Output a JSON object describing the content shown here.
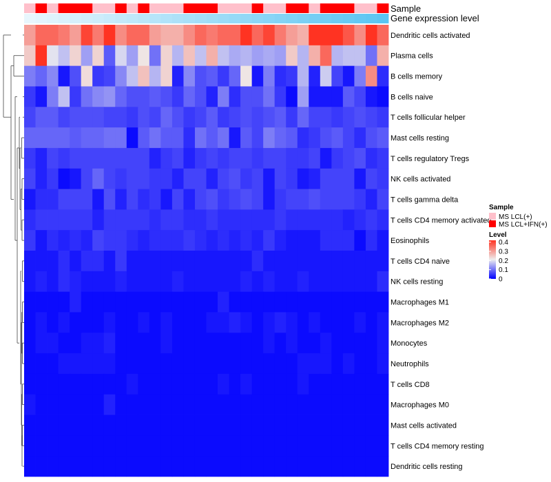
{
  "chart_data": {
    "type": "heatmap",
    "annotation_labels": [
      "Sample",
      "Gene expression level"
    ],
    "rows": [
      "Dendritic cells activated",
      "Plasma cells",
      "B cells memory",
      "B cells naive",
      "T cells follicular helper",
      "Mast cells resting",
      "T cells regulatory  Tregs",
      "NK cells activated",
      "T cells gamma delta",
      "T cells CD4 memory activated",
      "Eosinophils",
      "T cells CD4 naive",
      "NK cells resting",
      "Macrophages M1",
      "Macrophages M2",
      "Monocytes",
      "Neutrophils",
      "T cells CD8",
      "Macrophages M0",
      "Mast cells activated",
      "T cells CD4 memory resting",
      "Dendritic cells resting"
    ],
    "sample_groups": [
      "MS LCL(+)",
      "MS LCL+IFN(+)",
      "MS LCL(+)",
      "MS LCL+IFN(+)",
      "MS LCL+IFN(+)",
      "MS LCL+IFN(+)",
      "MS LCL(+)",
      "MS LCL(+)",
      "MS LCL+IFN(+)",
      "MS LCL(+)",
      "MS LCL+IFN(+)",
      "MS LCL(+)",
      "MS LCL(+)",
      "MS LCL(+)",
      "MS LCL+IFN(+)",
      "MS LCL+IFN(+)",
      "MS LCL+IFN(+)",
      "MS LCL(+)",
      "MS LCL(+)",
      "MS LCL(+)",
      "MS LCL+IFN(+)",
      "MS LCL(+)",
      "MS LCL(+)",
      "MS LCL+IFN(+)",
      "MS LCL+IFN(+)",
      "MS LCL(+)",
      "MS LCL+IFN(+)",
      "MS LCL+IFN(+)",
      "MS LCL+IFN(+)",
      "MS LCL(+)",
      "MS LCL(+)",
      "MS LCL+IFN(+)"
    ],
    "expression_range": [
      0,
      1
    ],
    "values": [
      [
        0.3,
        0.36,
        0.36,
        0.34,
        0.3,
        0.4,
        0.34,
        0.42,
        0.32,
        0.36,
        0.36,
        0.3,
        0.28,
        0.28,
        0.32,
        0.36,
        0.34,
        0.36,
        0.36,
        0.42,
        0.36,
        0.4,
        0.34,
        0.3,
        0.28,
        0.42,
        0.42,
        0.42,
        0.38,
        0.32,
        0.42,
        0.36
      ],
      [
        0.25,
        0.42,
        0.2,
        0.17,
        0.24,
        0.14,
        0.24,
        0.08,
        0.19,
        0.14,
        0.22,
        0.1,
        0.24,
        0.16,
        0.26,
        0.17,
        0.28,
        0.17,
        0.15,
        0.16,
        0.14,
        0.15,
        0.14,
        0.25,
        0.16,
        0.28,
        0.36,
        0.16,
        0.17,
        0.17,
        0.1,
        0.28
      ],
      [
        0.11,
        0.09,
        0.12,
        0.02,
        0.07,
        0.23,
        0.05,
        0.06,
        0.12,
        0.17,
        0.26,
        0.16,
        0.24,
        0.03,
        0.12,
        0.07,
        0.08,
        0.05,
        0.09,
        0.22,
        0.02,
        0.11,
        0.04,
        0.05,
        0.16,
        0.03,
        0.18,
        0.06,
        0.02,
        0.11,
        0.32,
        0.04
      ],
      [
        0.05,
        0.02,
        0.11,
        0.17,
        0.05,
        0.1,
        0.12,
        0.13,
        0.09,
        0.07,
        0.07,
        0.08,
        0.07,
        0.05,
        0.09,
        0.07,
        0.03,
        0.11,
        0.04,
        0.07,
        0.07,
        0.1,
        0.05,
        0.01,
        0.14,
        0.02,
        0.02,
        0.02,
        0.08,
        0.06,
        0.02,
        0.01
      ],
      [
        0.06,
        0.08,
        0.08,
        0.06,
        0.07,
        0.07,
        0.07,
        0.06,
        0.06,
        0.05,
        0.07,
        0.06,
        0.09,
        0.07,
        0.05,
        0.06,
        0.08,
        0.05,
        0.06,
        0.07,
        0.06,
        0.07,
        0.08,
        0.05,
        0.09,
        0.06,
        0.06,
        0.05,
        0.06,
        0.07,
        0.06,
        0.05
      ],
      [
        0.09,
        0.09,
        0.09,
        0.09,
        0.08,
        0.09,
        0.09,
        0.1,
        0.1,
        0.01,
        0.08,
        0.1,
        0.08,
        0.08,
        0.04,
        0.1,
        0.08,
        0.1,
        0.02,
        0.08,
        0.06,
        0.11,
        0.09,
        0.08,
        0.04,
        0.05,
        0.07,
        0.08,
        0.06,
        0.04,
        0.07,
        0.08
      ],
      [
        0.05,
        0.03,
        0.06,
        0.05,
        0.06,
        0.06,
        0.06,
        0.06,
        0.06,
        0.06,
        0.06,
        0.03,
        0.05,
        0.06,
        0.03,
        0.05,
        0.06,
        0.05,
        0.06,
        0.06,
        0.05,
        0.06,
        0.06,
        0.05,
        0.05,
        0.06,
        0.02,
        0.05,
        0.06,
        0.07,
        0.04,
        0.05
      ],
      [
        0.06,
        0.03,
        0.05,
        0.01,
        0.02,
        0.06,
        0.09,
        0.06,
        0.05,
        0.06,
        0.06,
        0.05,
        0.05,
        0.03,
        0.06,
        0.06,
        0.03,
        0.06,
        0.07,
        0.05,
        0.06,
        0.02,
        0.06,
        0.05,
        0.02,
        0.03,
        0.06,
        0.06,
        0.06,
        0.02,
        0.06,
        0.05
      ],
      [
        0.02,
        0.04,
        0.04,
        0.06,
        0.06,
        0.06,
        0.02,
        0.07,
        0.03,
        0.06,
        0.04,
        0.05,
        0.02,
        0.06,
        0.03,
        0.06,
        0.07,
        0.05,
        0.06,
        0.07,
        0.06,
        0.02,
        0.05,
        0.06,
        0.06,
        0.07,
        0.06,
        0.06,
        0.06,
        0.05,
        0.03,
        0.06
      ],
      [
        0.04,
        0.05,
        0.05,
        0.05,
        0.05,
        0.05,
        0.03,
        0.05,
        0.05,
        0.05,
        0.05,
        0.04,
        0.05,
        0.05,
        0.04,
        0.04,
        0.05,
        0.04,
        0.04,
        0.04,
        0.04,
        0.04,
        0.05,
        0.04,
        0.04,
        0.04,
        0.04,
        0.04,
        0.03,
        0.04,
        0.05,
        0.04
      ],
      [
        0.05,
        0.02,
        0.04,
        0.03,
        0.04,
        0.03,
        0.06,
        0.05,
        0.05,
        0.04,
        0.03,
        0.04,
        0.04,
        0.04,
        0.05,
        0.04,
        0.03,
        0.04,
        0.03,
        0.04,
        0.03,
        0.05,
        0.03,
        0.02,
        0.02,
        0.02,
        0.04,
        0.04,
        0.04,
        0.01,
        0.04,
        0.02
      ],
      [
        0.02,
        0.02,
        0.02,
        0.04,
        0.02,
        0.04,
        0.04,
        0.02,
        0.05,
        0.02,
        0.02,
        0.02,
        0.02,
        0.02,
        0.02,
        0.02,
        0.02,
        0.02,
        0.02,
        0.02,
        0.04,
        0.02,
        0.02,
        0.02,
        0.02,
        0.02,
        0.02,
        0.02,
        0.02,
        0.02,
        0.02,
        0.02
      ],
      [
        0.02,
        0.03,
        0.02,
        0.04,
        0.03,
        0.02,
        0.02,
        0.02,
        0.03,
        0.02,
        0.02,
        0.02,
        0.02,
        0.03,
        0.02,
        0.02,
        0.02,
        0.02,
        0.02,
        0.03,
        0.02,
        0.03,
        0.02,
        0.02,
        0.03,
        0.02,
        0.02,
        0.02,
        0.02,
        0.02,
        0.02,
        0.04
      ],
      [
        0.01,
        0.01,
        0.01,
        0.01,
        0.03,
        0.01,
        0.01,
        0.01,
        0.01,
        0.01,
        0.01,
        0.01,
        0.01,
        0.01,
        0.01,
        0.01,
        0.01,
        0.03,
        0.01,
        0.01,
        0.01,
        0.01,
        0.01,
        0.01,
        0.01,
        0.01,
        0.01,
        0.01,
        0.01,
        0.01,
        0.01,
        0.01
      ],
      [
        0.01,
        0.02,
        0.01,
        0.02,
        0.01,
        0.01,
        0.01,
        0.02,
        0.01,
        0.01,
        0.02,
        0.01,
        0.02,
        0.01,
        0.01,
        0.01,
        0.02,
        0.02,
        0.03,
        0.02,
        0.01,
        0.02,
        0.03,
        0.02,
        0.01,
        0.02,
        0.01,
        0.01,
        0.01,
        0.02,
        0.01,
        0.02
      ],
      [
        0.01,
        0.02,
        0.02,
        0.01,
        0.01,
        0.02,
        0.02,
        0.03,
        0.01,
        0.01,
        0.01,
        0.01,
        0.02,
        0.01,
        0.01,
        0.01,
        0.01,
        0.01,
        0.01,
        0.01,
        0.01,
        0.02,
        0.01,
        0.02,
        0.01,
        0.01,
        0.02,
        0.01,
        0.01,
        0.01,
        0.01,
        0.02
      ],
      [
        0.01,
        0.01,
        0.01,
        0.02,
        0.02,
        0.02,
        0.02,
        0.02,
        0.01,
        0.01,
        0.01,
        0.01,
        0.01,
        0.01,
        0.01,
        0.01,
        0.01,
        0.01,
        0.01,
        0.01,
        0.01,
        0.01,
        0.01,
        0.01,
        0.02,
        0.02,
        0.02,
        0.01,
        0.02,
        0.01,
        0.01,
        0.02
      ],
      [
        0.01,
        0.01,
        0.01,
        0.01,
        0.01,
        0.01,
        0.01,
        0.01,
        0.01,
        0.02,
        0.01,
        0.01,
        0.01,
        0.01,
        0.01,
        0.01,
        0.01,
        0.02,
        0.01,
        0.02,
        0.01,
        0.01,
        0.01,
        0.01,
        0.02,
        0.01,
        0.01,
        0.01,
        0.01,
        0.01,
        0.01,
        0.01
      ],
      [
        0.02,
        0.01,
        0.01,
        0.01,
        0.01,
        0.01,
        0.01,
        0.03,
        0.01,
        0.01,
        0.01,
        0.01,
        0.01,
        0.01,
        0.01,
        0.01,
        0.01,
        0.01,
        0.01,
        0.01,
        0.01,
        0.01,
        0.01,
        0.01,
        0.01,
        0.01,
        0.01,
        0.01,
        0.01,
        0.01,
        0.01,
        0.01
      ],
      [
        0.01,
        0.01,
        0.01,
        0.01,
        0.01,
        0.01,
        0.01,
        0.01,
        0.01,
        0.01,
        0.01,
        0.01,
        0.01,
        0.01,
        0.01,
        0.01,
        0.01,
        0.01,
        0.01,
        0.01,
        0.01,
        0.01,
        0.01,
        0.01,
        0.01,
        0.01,
        0.01,
        0.01,
        0.01,
        0.01,
        0.01,
        0.01
      ],
      [
        0.01,
        0.01,
        0.01,
        0.01,
        0.01,
        0.01,
        0.01,
        0.01,
        0.01,
        0.01,
        0.01,
        0.01,
        0.01,
        0.01,
        0.01,
        0.01,
        0.01,
        0.01,
        0.01,
        0.01,
        0.01,
        0.01,
        0.01,
        0.01,
        0.01,
        0.01,
        0.01,
        0.01,
        0.01,
        0.01,
        0.01,
        0.01
      ],
      [
        0.01,
        0.01,
        0.01,
        0.01,
        0.01,
        0.01,
        0.01,
        0.01,
        0.01,
        0.01,
        0.01,
        0.01,
        0.01,
        0.01,
        0.01,
        0.01,
        0.01,
        0.01,
        0.01,
        0.01,
        0.01,
        0.01,
        0.01,
        0.01,
        0.01,
        0.01,
        0.01,
        0.01,
        0.01,
        0.01,
        0.01,
        0.01
      ]
    ],
    "legend_sample": {
      "title": "Sample",
      "entries": [
        {
          "label": "MS LCL(+)",
          "color": "#FFC0CB"
        },
        {
          "label": "MS LCL+IFN(+)",
          "color": "#FF0000"
        }
      ]
    },
    "legend_level": {
      "title": "Level",
      "ticks": [
        "0.4",
        "0.3",
        "0.2",
        "0.1",
        "0"
      ],
      "tick_values": [
        0.4,
        0.3,
        0.2,
        0.1,
        0.0
      ],
      "range": [
        0,
        0.42
      ]
    },
    "colors": {
      "low": "#0000FF",
      "mid": "#EEEEEE",
      "high": "#FF3322",
      "expr_low": "#E8F6FD",
      "expr_high": "#5BC5F2"
    }
  }
}
